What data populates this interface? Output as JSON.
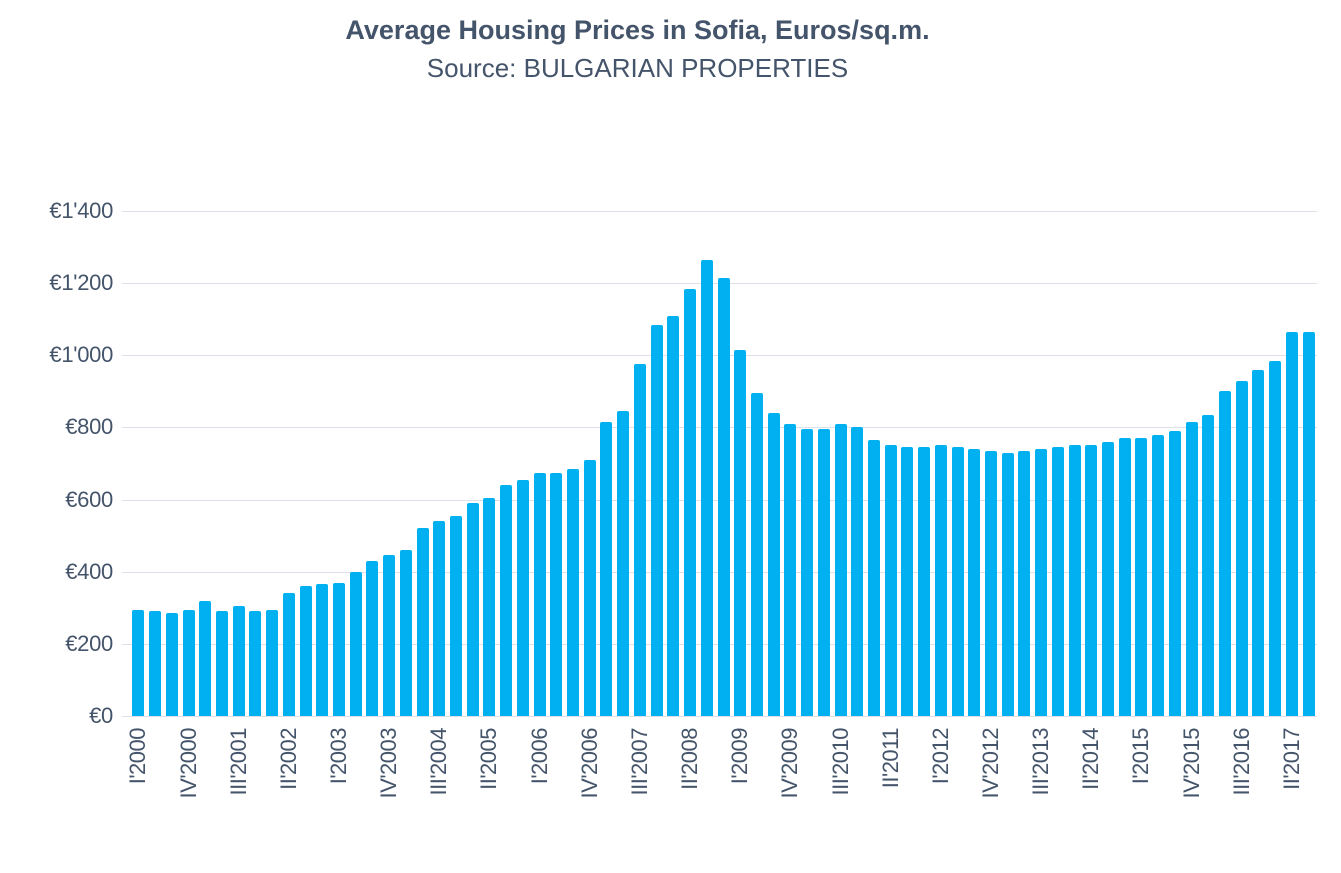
{
  "header": {
    "title": "Average Housing Prices in Sofia, Euros/sq.m.",
    "subtitle": "Source: BULGARIAN PROPERTIES"
  },
  "colors": {
    "bar": "#00B0F0",
    "gridline": "#DCE1E9",
    "text": "#44546A",
    "background": "#FFFFFF"
  },
  "chart_data": {
    "type": "bar",
    "title": "Average Housing Prices in Sofia, Euros/sq.m.",
    "subtitle": "Source: BULGARIAN PROPERTIES",
    "xlabel": "",
    "ylabel": "",
    "y_unit": "EUR per sq.m.",
    "ylim": [
      0,
      1400
    ],
    "y_ticks": [
      0,
      200,
      400,
      600,
      800,
      1000,
      1200,
      1400
    ],
    "y_tick_labels": [
      "€0",
      "€200",
      "€400",
      "€600",
      "€800",
      "€1'000",
      "€1'200",
      "€1'400"
    ],
    "grid": true,
    "legend": false,
    "x_tick_every": 3,
    "x_tick_labels": [
      "I'2000",
      "IV'2000",
      "III'2001",
      "II'2002",
      "I'2003",
      "IV'2003",
      "III'2004",
      "II'2005",
      "I'2006",
      "IV'2006",
      "III'2007",
      "II'2008",
      "I'2009",
      "IV'2009",
      "III'2010",
      "II'2011",
      "I'2012",
      "IV'2012",
      "III'2013",
      "II'2014",
      "I'2015",
      "IV'2015",
      "III'2016",
      "II'2017"
    ],
    "categories": [
      "I'2000",
      "II'2000",
      "III'2000",
      "IV'2000",
      "I'2001",
      "II'2001",
      "III'2001",
      "IV'2001",
      "I'2002",
      "II'2002",
      "III'2002",
      "IV'2002",
      "I'2003",
      "II'2003",
      "III'2003",
      "IV'2003",
      "I'2004",
      "II'2004",
      "III'2004",
      "IV'2004",
      "I'2005",
      "II'2005",
      "III'2005",
      "IV'2005",
      "I'2006",
      "II'2006",
      "III'2006",
      "IV'2006",
      "I'2007",
      "II'2007",
      "III'2007",
      "IV'2007",
      "I'2008",
      "II'2008",
      "III'2008",
      "IV'2008",
      "I'2009",
      "II'2009",
      "III'2009",
      "IV'2009",
      "I'2010",
      "II'2010",
      "III'2010",
      "IV'2010",
      "I'2011",
      "II'2011",
      "III'2011",
      "IV'2011",
      "I'2012",
      "II'2012",
      "III'2012",
      "IV'2012",
      "I'2013",
      "II'2013",
      "III'2013",
      "IV'2013",
      "I'2014",
      "II'2014",
      "III'2014",
      "IV'2014",
      "I'2015",
      "II'2015",
      "III'2015",
      "IV'2015",
      "I'2016",
      "II'2016",
      "III'2016",
      "IV'2016",
      "I'2017",
      "II'2017",
      "III'2017"
    ],
    "values": [
      295,
      290,
      285,
      295,
      320,
      290,
      305,
      290,
      295,
      340,
      360,
      365,
      370,
      400,
      430,
      445,
      460,
      520,
      540,
      555,
      590,
      605,
      640,
      655,
      675,
      675,
      685,
      710,
      815,
      845,
      975,
      1085,
      1110,
      1185,
      1265,
      1215,
      1015,
      895,
      840,
      810,
      795,
      795,
      810,
      800,
      765,
      750,
      745,
      745,
      750,
      745,
      740,
      735,
      730,
      735,
      740,
      745,
      750,
      750,
      760,
      770,
      770,
      780,
      790,
      815,
      835,
      900,
      930,
      960,
      985,
      1065,
      1065
    ]
  }
}
